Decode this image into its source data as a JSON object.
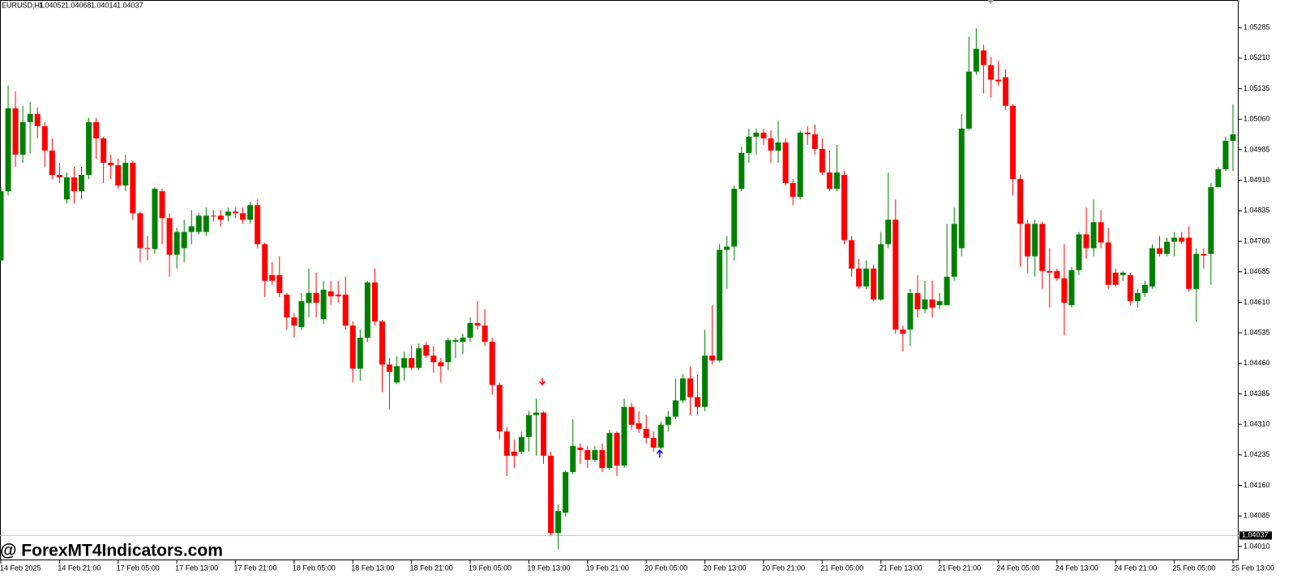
{
  "chart_data": {
    "type": "candlestick",
    "symbol": "EURUSD,H1",
    "ohlc": [
      1.04052,
      1.04068,
      1.04014,
      1.04037
    ],
    "last_price": 1.04037,
    "watermark": "@ ForexMT4Indicators.com",
    "up_color": "#008000",
    "down_color": "#ff0000",
    "ylim": [
      1.03976,
      1.05353
    ],
    "yticks": [
      1.05285,
      {
        "value": 1.0521,
        "label": "1.05210"
      },
      1.05135,
      {
        "value": 1.0506,
        "label": "1.05060"
      },
      1.04985,
      {
        "value": 1.0491,
        "label": "1.04910"
      },
      1.04835,
      {
        "value": 1.0476,
        "label": "1.04760"
      },
      1.04685,
      {
        "value": 1.0461,
        "label": "1.04610"
      },
      1.04535,
      {
        "value": 1.0446,
        "label": "1.04460"
      },
      1.04385,
      {
        "value": 1.0431,
        "label": "1.04310"
      },
      1.04235,
      {
        "value": 1.0416,
        "label": "1.04160"
      },
      1.04085,
      {
        "value": 1.0401,
        "label": "1.04010"
      }
    ],
    "categories": [
      "14 Feb 2025",
      null,
      null,
      null,
      null,
      null,
      null,
      null,
      "14 Feb 21:00",
      null,
      null,
      null,
      null,
      null,
      null,
      null,
      "17 Feb 05:00",
      null,
      null,
      null,
      null,
      null,
      null,
      null,
      "17 Feb 13:00",
      null,
      null,
      null,
      null,
      null,
      null,
      null,
      "17 Feb 21:00",
      null,
      null,
      null,
      null,
      null,
      null,
      null,
      "18 Feb 05:00",
      null,
      null,
      null,
      null,
      null,
      null,
      null,
      "18 Feb 13:00",
      null,
      null,
      null,
      null,
      null,
      null,
      null,
      "18 Feb 21:00",
      null,
      null,
      null,
      null,
      null,
      null,
      null,
      "19 Feb 05:00",
      null,
      null,
      null,
      null,
      null,
      null,
      null,
      "19 Feb 13:00",
      null,
      null,
      null,
      null,
      null,
      null,
      null,
      "19 Feb 21:00",
      null,
      null,
      null,
      null,
      null,
      null,
      null,
      "20 Feb 05:00",
      null,
      null,
      null,
      null,
      null,
      null,
      null,
      "20 Feb 13:00",
      null,
      null,
      null,
      null,
      null,
      null,
      null,
      "20 Feb 21:00",
      null,
      null,
      null,
      null,
      null,
      null,
      null,
      "21 Feb 05:00",
      null,
      null,
      null,
      null,
      null,
      null,
      null,
      "21 Feb 13:00",
      null,
      null,
      null,
      null,
      null,
      null,
      null,
      "21 Feb 21:00",
      null,
      null,
      null,
      null,
      null,
      null,
      null,
      "24 Feb 05:00",
      null,
      null,
      null,
      null,
      null,
      null,
      null,
      "24 Feb 13:00",
      null,
      null,
      null,
      null,
      null,
      null,
      null,
      "24 Feb 21:00",
      null,
      null,
      null,
      null,
      null,
      null,
      null,
      "25 Feb 05:00",
      null,
      null,
      null,
      null,
      null,
      null,
      null,
      "25 Feb 13:00"
    ],
    "open": [
      1.04713,
      1.04883,
      1.05087,
      1.04973,
      1.05053,
      1.05073,
      1.05043,
      1.04983,
      1.04923,
      1.04863,
      1.04917,
      1.04883,
      1.04923,
      1.05053,
      1.05013,
      1.04953,
      1.04947,
      1.04897,
      1.04953,
      1.04829,
      1.04743,
      1.04741,
      1.04883,
      1.04817,
      1.04727,
      1.04743,
      1.04783,
      1.04783,
      1.04783,
      1.04823,
      1.04823,
      1.04823,
      1.04833,
      1.04829,
      1.04813,
      1.04849,
      1.04753,
      1.04677,
      1.04677,
      1.04629,
      1.04573,
      1.04549,
      1.04609,
      1.04633,
      1.04569,
      1.04637,
      1.04629,
      1.04629,
      1.04553,
      1.04447,
      1.04523,
      1.04659,
      1.04563,
      1.04457,
      1.04413,
      1.04449,
      1.04473,
      1.04449,
      1.04505,
      1.04479,
      1.04463,
      1.04463,
      1.04513,
      1.04513,
      1.04523,
      1.04559,
      1.04553,
      1.04513,
      1.04407,
      1.04293,
      1.04243,
      1.04243,
      1.04279,
      1.04333,
      1.04339,
      1.04233,
      1.04043,
      1.04093,
      1.04193,
      1.04253,
      1.04247,
      1.04223,
      1.04247,
      1.04203,
      1.04289,
      1.04209,
      1.04353,
      1.04313,
      1.04299,
      1.04277,
      1.04253,
      1.04309,
      1.04329,
      1.04369,
      1.04423,
      1.04377,
      1.04353,
      1.04479,
      1.04467,
      1.04739,
      1.04747,
      1.04889,
      1.04977,
      1.05017,
      1.05027,
      1.05013,
      1.04983,
      1.05003,
      1.04903,
      1.04869,
      1.05027,
      1.05023,
      1.04987,
      1.04929,
      1.04889,
      1.04923,
      1.04763,
      1.04693,
      1.04649,
      1.04693,
      1.04617,
      1.04753,
      1.04813,
      1.04543,
      1.04543,
      1.04633,
      1.04593,
      1.04617,
      1.04603,
      1.04603,
      1.04673,
      1.04743,
      1.05037,
      1.05177,
      1.05229,
      1.05193,
      1.05157,
      1.05163,
      1.05093,
      1.04913,
      1.04803,
      1.04723,
      1.04803,
      1.04687,
      1.04687,
      1.04669,
      1.04603,
      1.04689,
      1.04777,
      1.04743,
      1.04807,
      1.04757,
      1.04683,
      1.04677,
      1.04677,
      1.04613,
      1.04633,
      1.04649,
      1.04743,
      1.04729,
      1.04759,
      1.04769,
      1.04769,
      1.04643,
      1.04729,
      1.04729,
      1.04893,
      1.04937,
      1.05007
    ],
    "high": [
      1.04893,
      1.05143,
      1.05129,
      1.05093,
      1.05103,
      1.05089,
      1.05053,
      1.05013,
      1.04953,
      1.04929,
      1.04943,
      1.04943,
      1.05063,
      1.05063,
      1.05017,
      1.04973,
      1.04963,
      1.04973,
      1.04957,
      1.04833,
      1.04773,
      1.04893,
      1.04889,
      1.04829,
      1.04793,
      1.04813,
      1.04837,
      1.04829,
      1.04843,
      1.04837,
      1.04837,
      1.04843,
      1.04843,
      1.04843,
      1.04857,
      1.04863,
      1.04757,
      1.04709,
      1.04723,
      1.04633,
      1.04583,
      1.04633,
      1.04693,
      1.04683,
      1.04663,
      1.04663,
      1.04663,
      1.04673,
      1.04563,
      1.04543,
      1.04663,
      1.04693,
      1.04567,
      1.04473,
      1.04477,
      1.04489,
      1.04503,
      1.04509,
      1.04513,
      1.04503,
      1.04473,
      1.04523,
      1.04523,
      1.04533,
      1.04573,
      1.04613,
      1.04593,
      1.04523,
      1.04413,
      1.04303,
      1.04273,
      1.04293,
      1.04343,
      1.04373,
      1.04343,
      1.04243,
      1.04113,
      1.04197,
      1.04323,
      1.04263,
      1.04257,
      1.04257,
      1.04263,
      1.04297,
      1.04293,
      1.04373,
      1.04363,
      1.04343,
      1.04333,
      1.04293,
      1.04317,
      1.04343,
      1.04423,
      1.04433,
      1.04453,
      1.04433,
      1.04543,
      1.04603,
      1.04753,
      1.04773,
      1.04897,
      1.04993,
      1.05037,
      1.05037,
      1.05037,
      1.05033,
      1.05057,
      1.05013,
      1.04913,
      1.05033,
      1.05043,
      1.05047,
      1.05013,
      1.04983,
      1.04997,
      1.04933,
      1.04773,
      1.04717,
      1.04713,
      1.04703,
      1.04783,
      1.04929,
      1.04863,
      1.04553,
      1.04643,
      1.04677,
      1.04663,
      1.04663,
      1.04633,
      1.04803,
      1.04843,
      1.05073,
      1.05263,
      1.05283,
      1.05243,
      1.05213,
      1.05203,
      1.05183,
      1.05097,
      1.04923,
      1.04813,
      1.04813,
      1.04809,
      1.04743,
      1.04693,
      1.04753,
      1.04697,
      1.04783,
      1.04843,
      1.04863,
      1.04837,
      1.04793,
      1.04693,
      1.04687,
      1.04683,
      1.04643,
      1.04663,
      1.04753,
      1.04773,
      1.04769,
      1.04783,
      1.04783,
      1.04797,
      1.04743,
      1.04743,
      1.04903,
      1.04943,
      1.05017,
      1.05097
    ],
    "low": [
      1.04713,
      1.04873,
      1.04943,
      1.04953,
      1.04977,
      1.05013,
      1.04943,
      1.04913,
      1.04903,
      1.04853,
      1.04853,
      1.04863,
      1.04913,
      1.04963,
      1.04903,
      1.04913,
      1.04889,
      1.04883,
      1.04813,
      1.04709,
      1.04713,
      1.04729,
      1.04753,
      1.04673,
      1.04693,
      1.04709,
      1.04753,
      1.04777,
      1.04773,
      1.04809,
      1.04797,
      1.04809,
      1.04817,
      1.04803,
      1.04803,
      1.04743,
      1.04623,
      1.04653,
      1.04623,
      1.04543,
      1.04523,
      1.04543,
      1.04573,
      1.04573,
      1.04557,
      1.04603,
      1.04609,
      1.04543,
      1.04413,
      1.04417,
      1.04513,
      1.04553,
      1.04389,
      1.04349,
      1.04409,
      1.04417,
      1.04443,
      1.04443,
      1.04473,
      1.04437,
      1.04413,
      1.04443,
      1.04473,
      1.04483,
      1.04513,
      1.04543,
      1.04503,
      1.04383,
      1.04273,
      1.04183,
      1.04203,
      1.04237,
      1.04243,
      1.04233,
      1.04213,
      1.04037,
      1.04003,
      1.04083,
      1.04187,
      1.04213,
      1.04203,
      1.04217,
      1.04193,
      1.04197,
      1.04183,
      1.04203,
      1.04297,
      1.04289,
      1.04263,
      1.04243,
      1.04249,
      1.04293,
      1.04323,
      1.04363,
      1.04333,
      1.04333,
      1.04343,
      1.04457,
      1.04463,
      1.04643,
      1.04713,
      1.04883,
      1.04953,
      1.04973,
      1.04997,
      1.04953,
      1.04953,
      1.04897,
      1.04849,
      1.04863,
      1.04997,
      1.04973,
      1.04923,
      1.04883,
      1.04883,
      1.04753,
      1.04673,
      1.04643,
      1.04643,
      1.04613,
      1.04613,
      1.04743,
      1.04533,
      1.04489,
      1.04503,
      1.04573,
      1.04583,
      1.04573,
      1.04593,
      1.04603,
      1.04663,
      1.04723,
      1.05033,
      1.05169,
      1.05123,
      1.05113,
      1.05143,
      1.05083,
      1.04873,
      1.04697,
      1.04683,
      1.04673,
      1.04643,
      1.04597,
      1.04663,
      1.04529,
      1.04597,
      1.04677,
      1.04717,
      1.04723,
      1.04743,
      1.04643,
      1.04649,
      1.04663,
      1.04603,
      1.04597,
      1.04623,
      1.04643,
      1.04723,
      1.04723,
      1.04723,
      1.04753,
      1.04637,
      1.04563,
      1.04693,
      1.04653,
      1.04893,
      1.04933,
      1.04933
    ],
    "close": [
      1.04883,
      1.05087,
      1.04973,
      1.05053,
      1.05073,
      1.05043,
      1.04983,
      1.04923,
      1.04917,
      1.04917,
      1.04883,
      1.04923,
      1.05053,
      1.05013,
      1.04953,
      1.04947,
      1.04897,
      1.04953,
      1.04829,
      1.04743,
      1.04741,
      1.04889,
      1.04817,
      1.04727,
      1.04783,
      1.04783,
      1.04797,
      1.04823,
      1.04823,
      1.04821,
      1.04813,
      1.04833,
      1.04829,
      1.04813,
      1.04849,
      1.04753,
      1.04663,
      1.04663,
      1.04633,
      1.04573,
      1.04553,
      1.04613,
      1.04633,
      1.04609,
      1.04641,
      1.04625,
      1.04625,
      1.04553,
      1.04447,
      1.04523,
      1.04659,
      1.04563,
      1.04457,
      1.04439,
      1.04453,
      1.04473,
      1.04449,
      1.04497,
      1.04479,
      1.04463,
      1.04453,
      1.04517,
      1.04517,
      1.04523,
      1.04559,
      1.04553,
      1.04513,
      1.04407,
      1.04293,
      1.04233,
      1.04233,
      1.04279,
      1.04333,
      1.04339,
      1.04233,
      1.04043,
      1.04097,
      1.04193,
      1.04257,
      1.04247,
      1.04223,
      1.04247,
      1.04203,
      1.04289,
      1.04209,
      1.04353,
      1.04309,
      1.04299,
      1.04277,
      1.04253,
      1.04309,
      1.04329,
      1.04369,
      1.04423,
      1.04377,
      1.04353,
      1.04479,
      1.04467,
      1.04739,
      1.04747,
      1.04889,
      1.04977,
      1.05017,
      1.05027,
      1.05013,
      1.04983,
      1.05003,
      1.04903,
      1.04869,
      1.05027,
      1.05023,
      1.04987,
      1.04929,
      1.04889,
      1.04929,
      1.04763,
      1.04693,
      1.04649,
      1.04693,
      1.04617,
      1.04753,
      1.04813,
      1.04543,
      1.04533,
      1.04633,
      1.04593,
      1.04617,
      1.04597,
      1.04613,
      1.04673,
      1.04803,
      1.05037,
      1.05177,
      1.05233,
      1.05193,
      1.05157,
      1.05153,
      1.05093,
      1.04913,
      1.04803,
      1.04723,
      1.04803,
      1.04687,
      1.04683,
      1.04669,
      1.04609,
      1.04689,
      1.04777,
      1.04743,
      1.04807,
      1.04757,
      1.04653,
      1.04653,
      1.04683,
      1.04613,
      1.04633,
      1.04653,
      1.04743,
      1.04729,
      1.04759,
      1.04769,
      1.04759,
      1.04643,
      1.04729,
      1.04725,
      1.04893,
      1.04937,
      1.05007,
      1.05023
    ]
  }
}
